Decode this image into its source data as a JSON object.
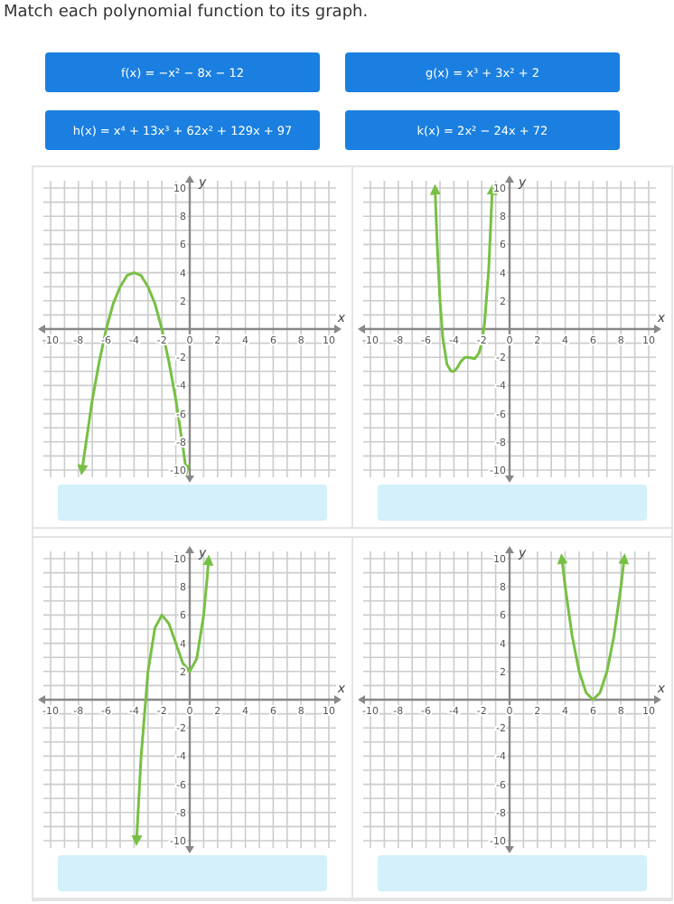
{
  "chart_data": [
    {
      "type": "other",
      "title": "Match each polynomial function to its graph.",
      "annotations": [
        "f(x) = −x² − 8x − 12",
        "g(x) = x³ + 3x² + 2",
        "h(x) = x⁴ + 13x³ + 62x² + 129x + 97",
        "k(x) = 2x² − 24x + 72"
      ]
    },
    {
      "type": "line",
      "xlabel": "x",
      "ylabel": "y",
      "xlim": [
        -10,
        10
      ],
      "ylim": [
        -10,
        10
      ],
      "grid": true,
      "line_style": "solid",
      "xticks": [
        -10,
        {
          "value": -9,
          "label": null
        },
        -8,
        {
          "value": -7,
          "label": null
        },
        -6,
        {
          "value": -5,
          "label": null
        },
        -4,
        {
          "value": -3,
          "label": null
        },
        -2,
        {
          "value": -1,
          "label": null
        },
        0,
        {
          "value": 1,
          "label": null
        },
        2,
        {
          "value": 3,
          "label": null
        },
        4,
        {
          "value": 5,
          "label": null
        },
        6,
        {
          "value": 7,
          "label": null
        },
        8,
        {
          "value": 9,
          "label": null
        },
        10
      ],
      "yticks": [
        -10,
        {
          "value": -9,
          "label": null
        },
        -8,
        {
          "value": -7,
          "label": null
        },
        -6,
        {
          "value": -5,
          "label": null
        },
        -4,
        {
          "value": -3,
          "label": null
        },
        -2,
        {
          "value": -1,
          "label": null
        },
        {
          "value": 0,
          "label": null
        },
        {
          "value": 1,
          "label": null
        },
        2,
        {
          "value": 3,
          "label": null
        },
        4,
        {
          "value": 5,
          "label": null
        },
        6,
        {
          "value": 7,
          "label": null
        },
        8,
        {
          "value": 9,
          "label": null
        },
        10
      ],
      "series": [
        {
          "color": "#77c043",
          "x": [
            -7.74,
            -7,
            -6.5,
            -6,
            -5.5,
            -5,
            -4.5,
            -4,
            -3.5,
            -3,
            -2.5,
            -2,
            -1.5,
            -1,
            -0.5,
            -0.26
          ],
          "values": [
            -10,
            -5,
            -2.3,
            0,
            1.8,
            3,
            3.8,
            4,
            3.8,
            3,
            1.8,
            0,
            -2.3,
            -5,
            -8.3,
            -10
          ]
        }
      ]
    },
    {
      "type": "line",
      "xlabel": "x",
      "ylabel": "y",
      "xlim": [
        -10,
        10
      ],
      "ylim": [
        -10,
        10
      ],
      "grid": true,
      "line_style": "solid",
      "xticks": [
        -10,
        {
          "value": -9,
          "label": null
        },
        -8,
        {
          "value": -7,
          "label": null
        },
        -6,
        {
          "value": -5,
          "label": null
        },
        -4,
        {
          "value": -3,
          "label": null
        },
        -2,
        {
          "value": -1,
          "label": null
        },
        0,
        {
          "value": 1,
          "label": null
        },
        2,
        {
          "value": 3,
          "label": null
        },
        4,
        {
          "value": 5,
          "label": null
        },
        6,
        {
          "value": 7,
          "label": null
        },
        8,
        {
          "value": 9,
          "label": null
        },
        10
      ],
      "yticks": [
        -10,
        {
          "value": -9,
          "label": null
        },
        -8,
        {
          "value": -7,
          "label": null
        },
        -6,
        {
          "value": -5,
          "label": null
        },
        -4,
        {
          "value": -3,
          "label": null
        },
        -2,
        {
          "value": -1,
          "label": null
        },
        {
          "value": 0,
          "label": null
        },
        {
          "value": 1,
          "label": null
        },
        2,
        {
          "value": 3,
          "label": null
        },
        4,
        {
          "value": 5,
          "label": null
        },
        6,
        {
          "value": 7,
          "label": null
        },
        8,
        {
          "value": 9,
          "label": null
        },
        10
      ],
      "series": [
        {
          "color": "#77c043",
          "x": [
            -5.35,
            -5.3,
            -5.2,
            -5,
            -4.8,
            -4.5,
            -4.2,
            -4,
            -3.8,
            -3.5,
            -3.2,
            -3,
            -2.5,
            -2.2,
            -2,
            -1.8,
            -1.5,
            -1.25,
            -1.24
          ],
          "values": [
            9.9,
            8.5,
            6,
            2,
            -0.6,
            -2.5,
            -3,
            -3,
            -2.8,
            -2.3,
            -2,
            -2,
            -2.1,
            -1.7,
            -1,
            0.4,
            4.2,
            9.7,
            9.9
          ]
        }
      ]
    },
    {
      "type": "line",
      "xlabel": "x",
      "ylabel": "y",
      "xlim": [
        -10,
        10
      ],
      "ylim": [
        -10,
        10
      ],
      "grid": true,
      "line_style": "solid",
      "xticks": [
        -10,
        {
          "value": -9,
          "label": null
        },
        -8,
        {
          "value": -7,
          "label": null
        },
        -6,
        {
          "value": -5,
          "label": null
        },
        -4,
        {
          "value": -3,
          "label": null
        },
        -2,
        {
          "value": -1,
          "label": null
        },
        0,
        {
          "value": 1,
          "label": null
        },
        2,
        {
          "value": 3,
          "label": null
        },
        4,
        {
          "value": 5,
          "label": null
        },
        6,
        {
          "value": 7,
          "label": null
        },
        8,
        {
          "value": 9,
          "label": null
        },
        10
      ],
      "yticks": [
        -10,
        {
          "value": -9,
          "label": null
        },
        -8,
        {
          "value": -7,
          "label": null
        },
        -6,
        {
          "value": -5,
          "label": null
        },
        -4,
        {
          "value": -3,
          "label": null
        },
        -2,
        {
          "value": -1,
          "label": null
        },
        {
          "value": 0,
          "label": null
        },
        {
          "value": 1,
          "label": null
        },
        2,
        {
          "value": 3,
          "label": null
        },
        4,
        {
          "value": 5,
          "label": null
        },
        6,
        {
          "value": 7,
          "label": null
        },
        8,
        {
          "value": 9,
          "label": null
        },
        10
      ],
      "series": [
        {
          "color": "#77c043",
          "x": [
            -3.82,
            -3.5,
            -3,
            -2.5,
            -2,
            -1.5,
            -1,
            -0.5,
            0,
            0.5,
            1,
            1.25,
            1.35
          ],
          "values": [
            -10,
            -4.1,
            2,
            5.1,
            6,
            5.4,
            4,
            2.6,
            2,
            2.9,
            6,
            8.6,
            9.9
          ]
        }
      ]
    },
    {
      "type": "line",
      "xlabel": "x",
      "ylabel": "y",
      "xlim": [
        -10,
        10
      ],
      "ylim": [
        -10,
        10
      ],
      "grid": true,
      "line_style": "solid",
      "xticks": [
        -10,
        {
          "value": -9,
          "label": null
        },
        -8,
        {
          "value": -7,
          "label": null
        },
        -6,
        {
          "value": -5,
          "label": null
        },
        -4,
        {
          "value": -3,
          "label": null
        },
        -2,
        {
          "value": -1,
          "label": null
        },
        0,
        {
          "value": 1,
          "label": null
        },
        2,
        {
          "value": 3,
          "label": null
        },
        4,
        {
          "value": 5,
          "label": null
        },
        6,
        {
          "value": 7,
          "label": null
        },
        8,
        {
          "value": 9,
          "label": null
        },
        10
      ],
      "yticks": [
        -10,
        {
          "value": -9,
          "label": null
        },
        -8,
        {
          "value": -7,
          "label": null
        },
        -6,
        {
          "value": -5,
          "label": null
        },
        -4,
        {
          "value": -3,
          "label": null
        },
        -2,
        {
          "value": -1,
          "label": null
        },
        {
          "value": 0,
          "label": null
        },
        {
          "value": 1,
          "label": null
        },
        2,
        {
          "value": 3,
          "label": null
        },
        4,
        {
          "value": 5,
          "label": null
        },
        6,
        {
          "value": 7,
          "label": null
        },
        8,
        {
          "value": 9,
          "label": null
        },
        10
      ],
      "series": [
        {
          "color": "#77c043",
          "x": [
            3.76,
            4,
            4.5,
            5,
            5.5,
            6,
            6.5,
            7,
            7.5,
            8,
            8.24
          ],
          "values": [
            10,
            8,
            4.5,
            2,
            0.5,
            0,
            0.5,
            2,
            4.5,
            8,
            10
          ]
        }
      ]
    }
  ]
}
